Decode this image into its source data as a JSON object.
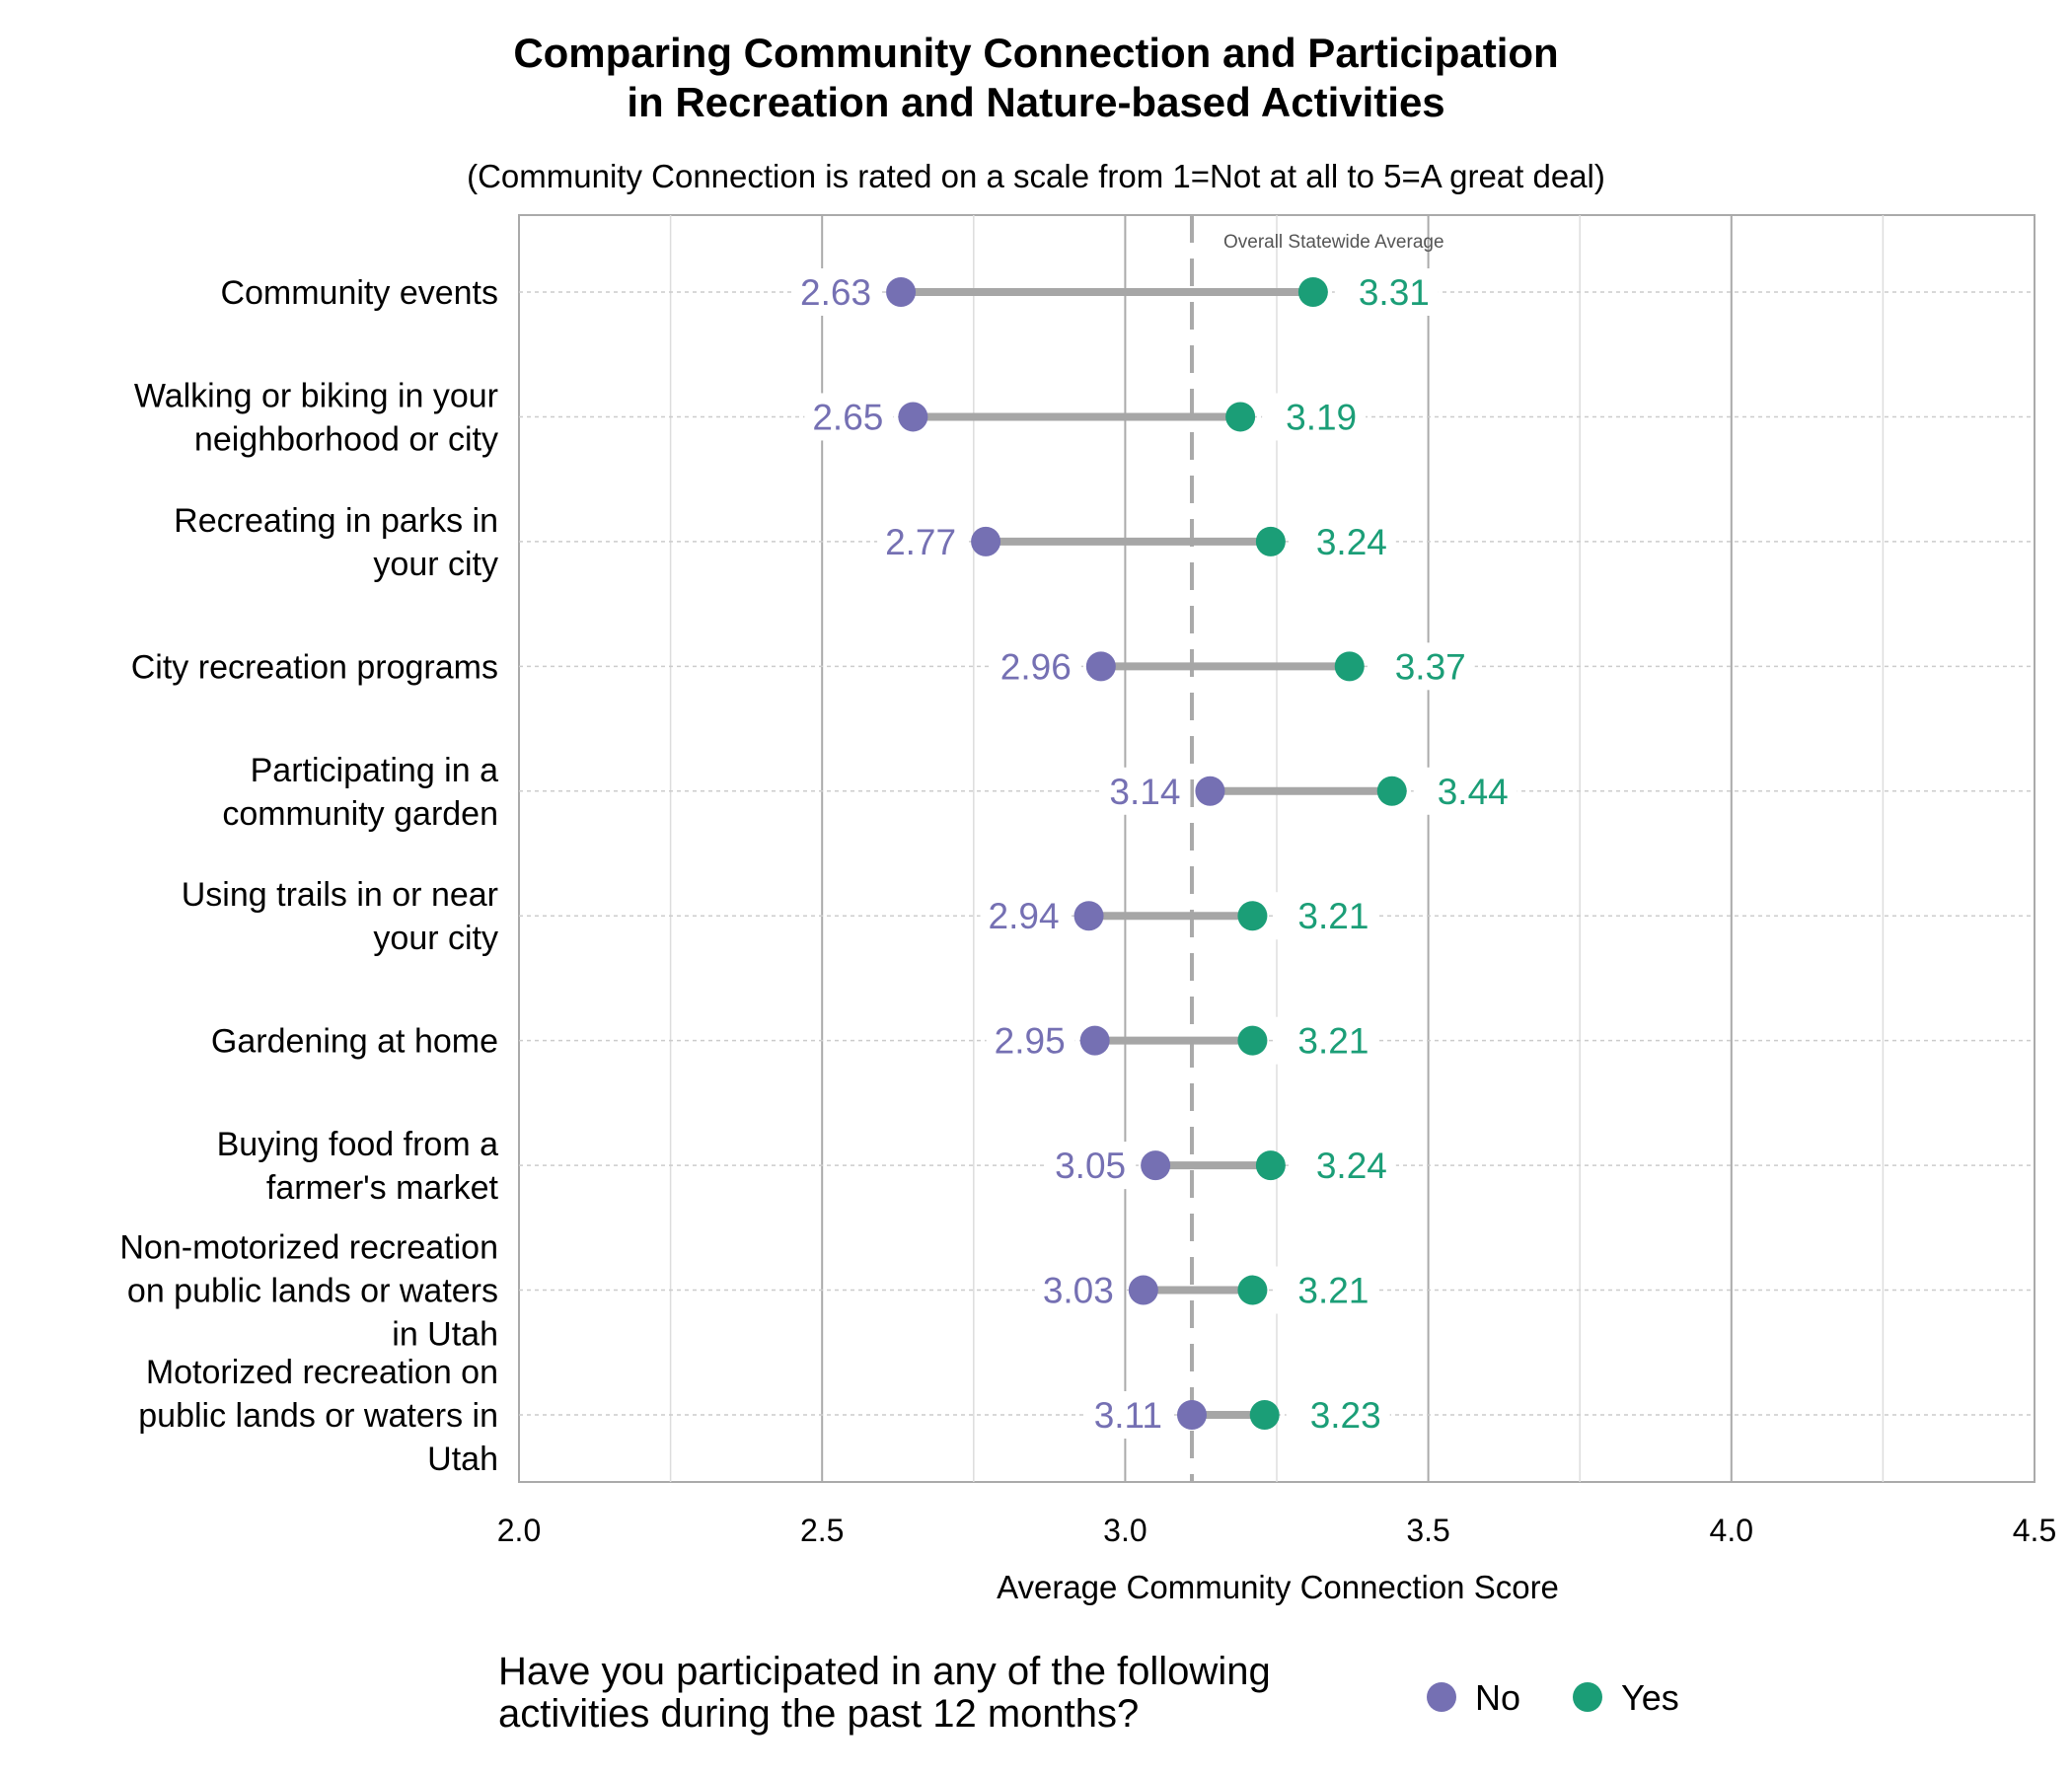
{
  "chart_data": {
    "type": "dumbbell",
    "title_lines": [
      "Comparing Community Connection and Participation",
      "in Recreation and Nature-based Activities"
    ],
    "subtitle": "(Community Connection is rated on a scale from 1=Not at all to 5=A great deal)",
    "xlabel": "Average Community Connection Score",
    "xlim": [
      2.0,
      4.5
    ],
    "xticks": [
      "2.0",
      "2.5",
      "3.0",
      "3.5",
      "4.0",
      "4.5"
    ],
    "grid": true,
    "reference_line": {
      "value": 3.11,
      "label": "Overall Statewide Average"
    },
    "categories": [
      [
        "Community events"
      ],
      [
        "Walking or biking in your",
        "neighborhood or city"
      ],
      [
        "Recreating in parks in",
        "your city"
      ],
      [
        "City recreation programs"
      ],
      [
        "Participating in a",
        "community garden"
      ],
      [
        "Using trails in or near",
        "your city"
      ],
      [
        "Gardening at home"
      ],
      [
        "Buying food from a",
        "farmer's market"
      ],
      [
        "Non-motorized recreation",
        "on public lands or waters",
        "in Utah"
      ],
      [
        "Motorized recreation on",
        "public lands or waters in",
        "Utah"
      ]
    ],
    "series": [
      {
        "name": "No",
        "color": "#7570b3",
        "values": [
          2.63,
          2.65,
          2.77,
          2.96,
          3.14,
          2.94,
          2.95,
          3.05,
          3.03,
          3.11
        ]
      },
      {
        "name": "Yes",
        "color": "#1b9e77",
        "values": [
          3.31,
          3.19,
          3.24,
          3.37,
          3.44,
          3.21,
          3.21,
          3.24,
          3.21,
          3.23
        ]
      }
    ],
    "legend": {
      "title_lines": [
        "Have you participated in any of the following",
        "activities during the past 12 months?"
      ],
      "position": "bottom"
    }
  }
}
